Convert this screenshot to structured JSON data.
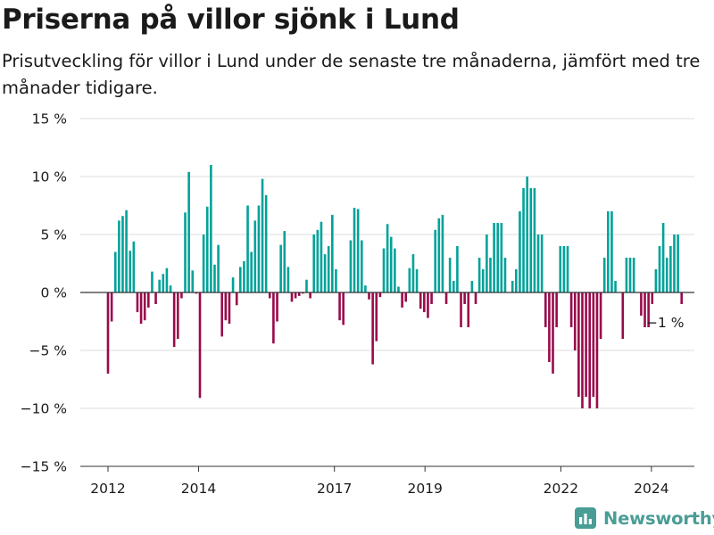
{
  "title": "Priserna på villor sjönk i Lund",
  "subtitle": "Prisutveckling för villor i Lund under de senaste tre månaderna, jämfört med tre månader tidigare.",
  "brand": "Newsworthy",
  "colors": {
    "positive": "#00a29a",
    "negative": "#990a4a",
    "grid": "#dddddd",
    "zero_line": "#333333",
    "text": "#1a1a1a",
    "brand": "#4a9d96"
  },
  "chart_data": {
    "type": "bar",
    "xlabel": "",
    "ylabel": "",
    "ylim": [
      -15,
      15
    ],
    "yticks": [
      15,
      10,
      5,
      0,
      -5,
      -10,
      -15
    ],
    "ytick_labels": [
      "15 %",
      "10 %",
      "5 %",
      "0 %",
      "−5 %",
      "−10 %",
      "−15 %"
    ],
    "x_start": "2012-01",
    "x_end": "2024-09",
    "xtick_labels": [
      "2012",
      "2014",
      "2017",
      "2019",
      "2022",
      "2024"
    ],
    "xtick_dates": [
      "2012-01",
      "2014-01",
      "2017-01",
      "2019-01",
      "2022-01",
      "2024-01"
    ],
    "grid": true,
    "annotation": "−1 %",
    "series": [
      {
        "values": [
          -7.0,
          -2.5,
          3.5,
          6.2,
          6.6,
          7.1,
          3.6,
          4.4,
          -1.7,
          -2.7,
          -2.4,
          -1.3,
          1.8,
          -1.0,
          1.1,
          1.6,
          2.1,
          0.6,
          -4.7,
          -4.0,
          -0.5,
          6.9,
          10.4,
          1.9,
          -0.1,
          -9.1,
          5.0,
          7.4,
          11.0,
          2.4,
          4.1,
          -3.8,
          -2.4,
          -2.7,
          1.3,
          -1.1,
          2.2,
          2.7,
          7.5,
          3.5,
          6.2,
          7.5,
          9.8,
          8.4,
          -0.5,
          -4.4,
          -2.5,
          4.1,
          5.3,
          2.2,
          -0.8,
          -0.5,
          -0.3,
          -0.1,
          1.1,
          -0.5,
          5.0,
          5.4,
          6.1,
          3.3,
          4.0,
          6.7,
          2.0,
          -2.4,
          -2.8,
          0.0,
          4.5,
          7.3,
          7.2,
          4.5,
          0.6,
          -0.6,
          -6.2,
          -4.2,
          -0.4,
          3.8,
          5.9,
          4.8,
          3.8,
          0.5,
          -1.3,
          -0.8,
          2.1,
          3.3,
          2.0,
          -1.4,
          -1.7,
          -2.2,
          -1.0,
          5.4,
          6.4,
          6.7,
          -1.0,
          3.0,
          1.0,
          4.0,
          -3.0,
          -1.0,
          -3.0,
          1.0,
          -1.0,
          3.0,
          2.0,
          5.0,
          3.0,
          6.0,
          6.0,
          6.0,
          3.0,
          0.0,
          1.0,
          2.0,
          7.0,
          9.0,
          10.0,
          9.0,
          9.0,
          5.0,
          5.0,
          -3.0,
          -6.0,
          -7.0,
          -3.0,
          4.0,
          4.0,
          4.0,
          -3.0,
          -5.0,
          -9.0,
          -10.0,
          -9.0,
          -10.0,
          -9.0,
          -10.0,
          -4.0,
          3.0,
          7.0,
          7.0,
          1.0,
          0.0,
          -4.0,
          3.0,
          3.0,
          3.0,
          0.0,
          -2.0,
          -3.0,
          -3.0,
          -1.0,
          2.0,
          4.0,
          6.0,
          3.0,
          4.0,
          5.0,
          5.0,
          -1.0
        ]
      }
    ]
  }
}
